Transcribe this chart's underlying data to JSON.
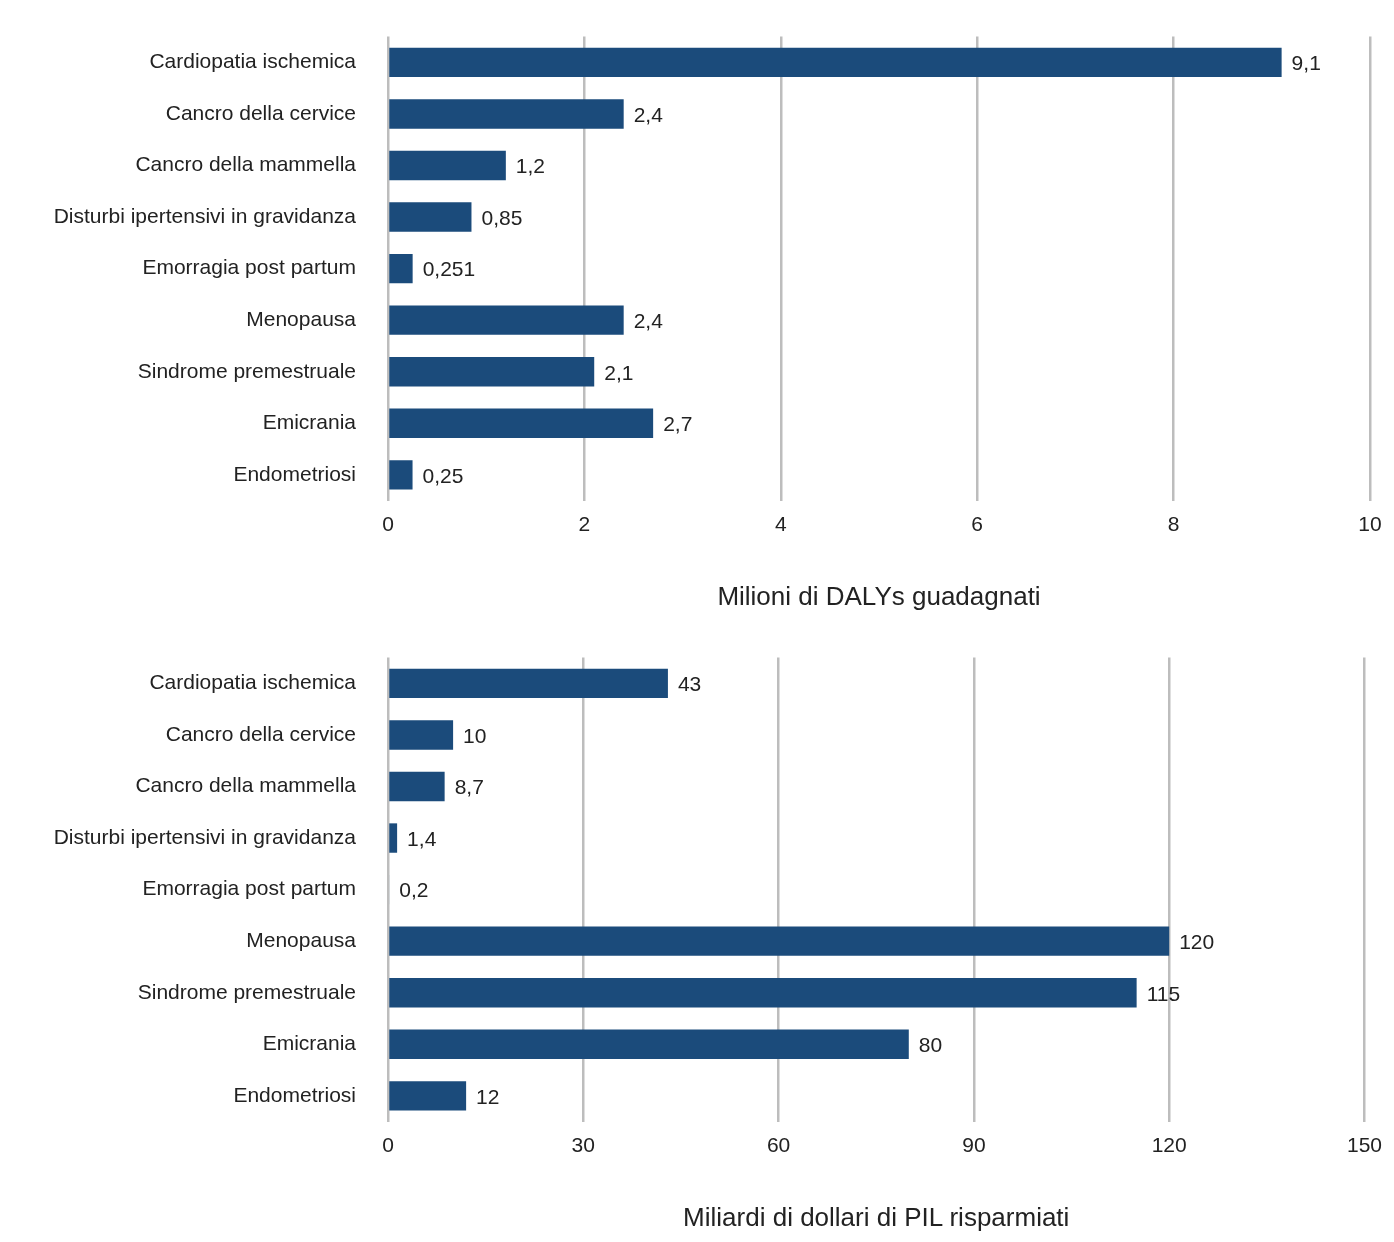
{
  "chart_data": [
    {
      "type": "bar",
      "orientation": "horizontal",
      "xlabel": "Milioni di DALYs guadagnati",
      "categories": [
        "Cardiopatia ischemica",
        "Cancro della cervice",
        "Cancro della mammella",
        "Disturbi ipertensivi in gravidanza",
        "Emorragia post partum",
        "Menopausa",
        "Sindrome premestruale",
        "Emicrania",
        "Endometriosi"
      ],
      "values": [
        9.1,
        2.4,
        1.2,
        0.85,
        0.251,
        2.4,
        2.1,
        2.7,
        0.25
      ],
      "value_labels": [
        "9,1",
        "2,4",
        "1,2",
        "0,85",
        "0,251",
        "2,4",
        "2,1",
        "2,7",
        "0,25"
      ],
      "color": "#1b4b7b",
      "xlim": [
        0,
        10
      ],
      "xticks": [
        0,
        2,
        4,
        6,
        8,
        10
      ],
      "grid": "x",
      "legend": false
    },
    {
      "type": "bar",
      "orientation": "horizontal",
      "xlabel": "Miliardi di dollari di PIL risparmiati",
      "categories": [
        "Cardiopatia ischemica",
        "Cancro della cervice",
        "Cancro della mammella",
        "Disturbi ipertensivi in gravidanza",
        "Emorragia post partum",
        "Menopausa",
        "Sindrome premestruale",
        "Emicrania",
        "Endometriosi"
      ],
      "values": [
        43,
        10,
        8.7,
        1.4,
        0.2,
        120,
        115,
        80,
        12
      ],
      "value_labels": [
        "43",
        "10",
        "8,7",
        "1,4",
        "0,2",
        "120",
        "115",
        "80",
        "12"
      ],
      "color": "#1b4b7b",
      "xlim": [
        0,
        150
      ],
      "xticks": [
        0,
        30,
        60,
        90,
        120,
        150
      ],
      "grid": "x",
      "legend": false
    }
  ]
}
